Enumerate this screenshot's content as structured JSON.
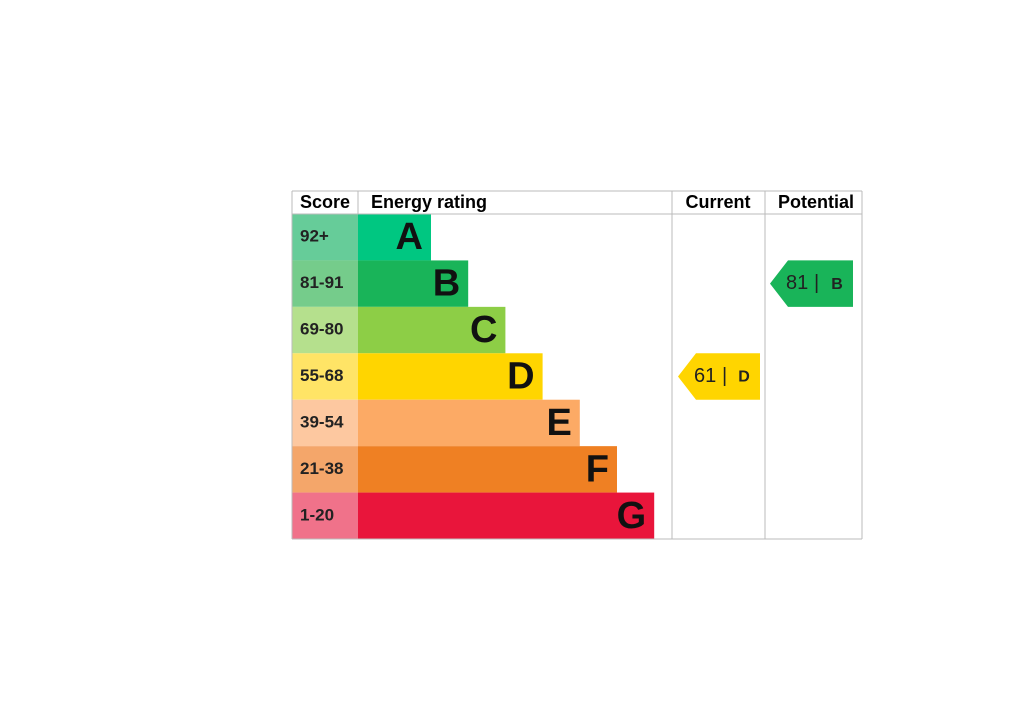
{
  "headers": {
    "score": "Score",
    "energy_rating": "Energy rating",
    "current": "Current",
    "potential": "Potential"
  },
  "bands": [
    {
      "score": "92+",
      "letter": "A",
      "color": "#00c781",
      "score_color": "#66cc99"
    },
    {
      "score": "81-91",
      "letter": "B",
      "color": "#19b459",
      "score_color": "#75cc8b"
    },
    {
      "score": "69-80",
      "letter": "C",
      "color": "#8dce46",
      "score_color": "#b5e08d"
    },
    {
      "score": "55-68",
      "letter": "D",
      "color": "#ffd500",
      "score_color": "#ffe466"
    },
    {
      "score": "39-54",
      "letter": "E",
      "color": "#fcaa65",
      "score_color": "#fdc8a0"
    },
    {
      "score": "21-38",
      "letter": "F",
      "color": "#ef8023",
      "score_color": "#f4a66a"
    },
    {
      "score": "1-20",
      "letter": "G",
      "color": "#e9153b",
      "score_color": "#f0728a"
    }
  ],
  "current": {
    "score": 61,
    "separator": "|",
    "rating": "D"
  },
  "potential": {
    "score": 81,
    "separator": "|",
    "rating": "B"
  }
}
